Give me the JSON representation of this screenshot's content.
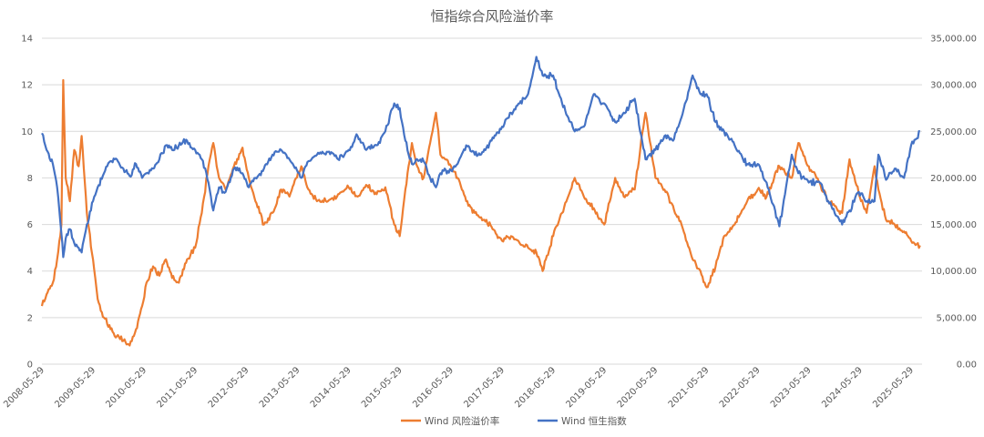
{
  "chart_data": {
    "type": "line",
    "title": "恒指综合风险溢价率",
    "x_tick_labels": [
      "2008-05-29",
      "2009-05-29",
      "2010-05-29",
      "2011-05-29",
      "2012-05-29",
      "2013-05-29",
      "2014-05-29",
      "2015-05-29",
      "2016-05-29",
      "2017-05-29",
      "2018-05-29",
      "2019-05-29",
      "2020-05-29",
      "2021-05-29",
      "2022-05-29",
      "2023-05-29",
      "2024-05-29",
      "2025-05-29"
    ],
    "y_left": {
      "min": 0,
      "max": 14,
      "tick_labels": [
        "0",
        "2",
        "4",
        "6",
        "8",
        "10",
        "12",
        "14"
      ]
    },
    "y_right": {
      "min": 0,
      "max": 35000,
      "tick_labels": [
        "0.00",
        "5,000.00",
        "10,000.00",
        "15,000.00",
        "20,000.00",
        "25,000.00",
        "30,000.00",
        "35,000.00"
      ]
    },
    "grid": "horizontal",
    "legend_position": "bottom",
    "series": [
      {
        "name": "Wind 风险溢价率",
        "axis": "left",
        "color": "#ED7D31",
        "x": [
          "2008-05-29",
          "2008-07-01",
          "2008-08-15",
          "2008-09-15",
          "2008-10-15",
          "2008-10-28",
          "2008-11-15",
          "2008-12-15",
          "2009-01-15",
          "2009-02-15",
          "2009-03-09",
          "2009-04-15",
          "2009-05-29",
          "2009-07-01",
          "2009-08-15",
          "2009-10-01",
          "2009-11-15",
          "2010-01-01",
          "2010-02-15",
          "2010-04-01",
          "2010-05-15",
          "2010-06-15",
          "2010-08-01",
          "2010-09-15",
          "2010-11-01",
          "2010-12-15",
          "2011-02-01",
          "2011-04-01",
          "2011-05-29",
          "2011-07-15",
          "2011-09-01",
          "2011-10-05",
          "2011-11-15",
          "2012-01-01",
          "2012-03-01",
          "2012-05-01",
          "2012-06-15",
          "2012-08-01",
          "2012-10-01",
          "2012-12-01",
          "2013-02-01",
          "2013-04-01",
          "2013-06-25",
          "2013-08-15",
          "2013-10-15",
          "2014-01-01",
          "2014-03-15",
          "2014-05-29",
          "2014-08-01",
          "2014-10-01",
          "2014-12-15",
          "2015-02-15",
          "2015-04-20",
          "2015-05-29",
          "2015-07-08",
          "2015-08-24",
          "2015-10-01",
          "2015-11-15",
          "2016-01-01",
          "2016-02-12",
          "2016-03-15",
          "2016-05-29",
          "2016-07-15",
          "2016-09-15",
          "2016-11-15",
          "2017-01-15",
          "2017-03-15",
          "2017-05-29",
          "2017-08-01",
          "2017-10-01",
          "2017-12-01",
          "2018-01-29",
          "2018-03-15",
          "2018-05-29",
          "2018-08-01",
          "2018-10-30",
          "2019-01-03",
          "2019-03-15",
          "2019-05-29",
          "2019-08-15",
          "2019-10-15",
          "2020-01-01",
          "2020-03-19",
          "2020-05-29",
          "2020-08-01",
          "2020-10-01",
          "2020-12-01",
          "2021-02-18",
          "2021-04-15",
          "2021-05-29",
          "2021-08-01",
          "2021-10-01",
          "2021-12-15",
          "2022-03-15",
          "2022-05-29",
          "2022-08-01",
          "2022-10-31",
          "2023-01-27",
          "2023-03-15",
          "2023-05-29",
          "2023-08-15",
          "2023-10-15",
          "2024-01-22",
          "2024-03-15",
          "2024-05-20",
          "2024-07-15",
          "2024-09-10",
          "2024-10-07",
          "2024-12-01",
          "2025-02-01",
          "2025-04-08",
          "2025-05-29",
          "2025-08-01"
        ],
        "values": [
          2.5,
          3.0,
          3.5,
          4.5,
          6.0,
          12.2,
          8.0,
          7.0,
          9.2,
          8.5,
          9.8,
          6.5,
          4.5,
          2.8,
          2.0,
          1.5,
          1.2,
          1.0,
          0.8,
          1.5,
          2.5,
          3.5,
          4.2,
          3.8,
          4.5,
          3.7,
          3.5,
          4.5,
          5.0,
          6.5,
          8.5,
          9.5,
          8.0,
          7.5,
          8.5,
          9.3,
          8.0,
          7.0,
          6.0,
          6.5,
          7.5,
          7.2,
          8.5,
          7.5,
          7.0,
          7.0,
          7.3,
          7.6,
          7.2,
          7.7,
          7.3,
          7.6,
          6.0,
          5.5,
          7.5,
          9.5,
          8.5,
          8.0,
          9.5,
          10.8,
          9.0,
          8.5,
          8.0,
          7.0,
          6.5,
          6.2,
          5.9,
          5.3,
          5.5,
          5.2,
          5.0,
          4.8,
          4.0,
          5.5,
          6.5,
          8.0,
          7.2,
          6.7,
          6.0,
          8.0,
          7.2,
          7.5,
          10.8,
          8.0,
          7.5,
          6.8,
          6.0,
          4.5,
          4.0,
          3.3,
          4.2,
          5.5,
          6.0,
          7.0,
          7.5,
          7.2,
          8.5,
          8.0,
          9.5,
          8.5,
          7.8,
          7.0,
          6.5,
          8.8,
          7.3,
          6.5,
          8.5,
          7.5,
          6.2,
          6.0,
          5.7,
          5.3,
          5.1
        ]
      },
      {
        "name": "Wind 恒生指数",
        "axis": "right",
        "color": "#4472C4",
        "x": [
          "2008-05-29",
          "2008-07-01",
          "2008-08-15",
          "2008-09-15",
          "2008-10-15",
          "2008-10-28",
          "2008-11-15",
          "2008-12-15",
          "2009-01-15",
          "2009-02-15",
          "2009-03-09",
          "2009-04-15",
          "2009-05-29",
          "2009-07-01",
          "2009-08-15",
          "2009-10-01",
          "2009-11-15",
          "2010-01-01",
          "2010-02-15",
          "2010-04-01",
          "2010-05-15",
          "2010-06-15",
          "2010-08-01",
          "2010-09-15",
          "2010-11-01",
          "2010-12-15",
          "2011-02-01",
          "2011-04-01",
          "2011-05-29",
          "2011-07-15",
          "2011-09-01",
          "2011-10-05",
          "2011-11-15",
          "2012-01-01",
          "2012-03-01",
          "2012-05-01",
          "2012-06-15",
          "2012-08-01",
          "2012-10-01",
          "2012-12-01",
          "2013-02-01",
          "2013-04-01",
          "2013-06-25",
          "2013-08-15",
          "2013-10-15",
          "2014-01-01",
          "2014-03-15",
          "2014-05-29",
          "2014-08-01",
          "2014-10-01",
          "2014-12-15",
          "2015-02-15",
          "2015-04-20",
          "2015-05-29",
          "2015-07-08",
          "2015-08-24",
          "2015-10-01",
          "2015-11-15",
          "2016-01-01",
          "2016-02-12",
          "2016-03-15",
          "2016-05-29",
          "2016-07-15",
          "2016-09-15",
          "2016-11-15",
          "2017-01-15",
          "2017-03-15",
          "2017-05-29",
          "2017-08-01",
          "2017-10-01",
          "2017-12-01",
          "2018-01-29",
          "2018-03-15",
          "2018-05-29",
          "2018-08-01",
          "2018-10-30",
          "2019-01-03",
          "2019-03-15",
          "2019-05-29",
          "2019-08-15",
          "2019-10-15",
          "2020-01-01",
          "2020-03-19",
          "2020-05-29",
          "2020-08-01",
          "2020-10-01",
          "2020-12-01",
          "2021-02-18",
          "2021-04-15",
          "2021-05-29",
          "2021-08-01",
          "2021-10-01",
          "2021-12-15",
          "2022-03-15",
          "2022-05-29",
          "2022-08-01",
          "2022-10-31",
          "2023-01-27",
          "2023-03-15",
          "2023-05-29",
          "2023-08-15",
          "2023-10-15",
          "2024-01-22",
          "2024-03-15",
          "2024-05-20",
          "2024-07-15",
          "2024-09-10",
          "2024-10-07",
          "2024-12-01",
          "2025-02-01",
          "2025-04-08",
          "2025-05-29",
          "2025-08-01"
        ],
        "values": [
          24800,
          23000,
          21500,
          19000,
          14000,
          11500,
          13500,
          14500,
          13000,
          12500,
          12000,
          15000,
          17500,
          19000,
          20500,
          21800,
          22000,
          21000,
          20200,
          21500,
          20000,
          20500,
          21000,
          22000,
          23500,
          23000,
          23500,
          24000,
          23000,
          22000,
          19500,
          16500,
          19000,
          18500,
          21000,
          20500,
          19000,
          20000,
          21000,
          22500,
          23000,
          22000,
          20000,
          21800,
          22500,
          22800,
          22000,
          23000,
          24500,
          23000,
          23500,
          25000,
          28000,
          27500,
          24000,
          21500,
          22000,
          21800,
          20000,
          19000,
          20500,
          20800,
          21500,
          23500,
          22500,
          22800,
          24000,
          25500,
          27000,
          28000,
          29000,
          33000,
          31000,
          31000,
          28000,
          25000,
          25500,
          29000,
          28000,
          26000,
          27000,
          28500,
          22000,
          23000,
          24500,
          24000,
          26500,
          31000,
          29000,
          29000,
          26000,
          25000,
          23500,
          21500,
          21500,
          19500,
          14800,
          22500,
          20500,
          19500,
          19500,
          17500,
          15000,
          16500,
          18500,
          17500,
          17500,
          22500,
          19800,
          21000,
          20000,
          23500,
          25000
        ]
      }
    ]
  }
}
